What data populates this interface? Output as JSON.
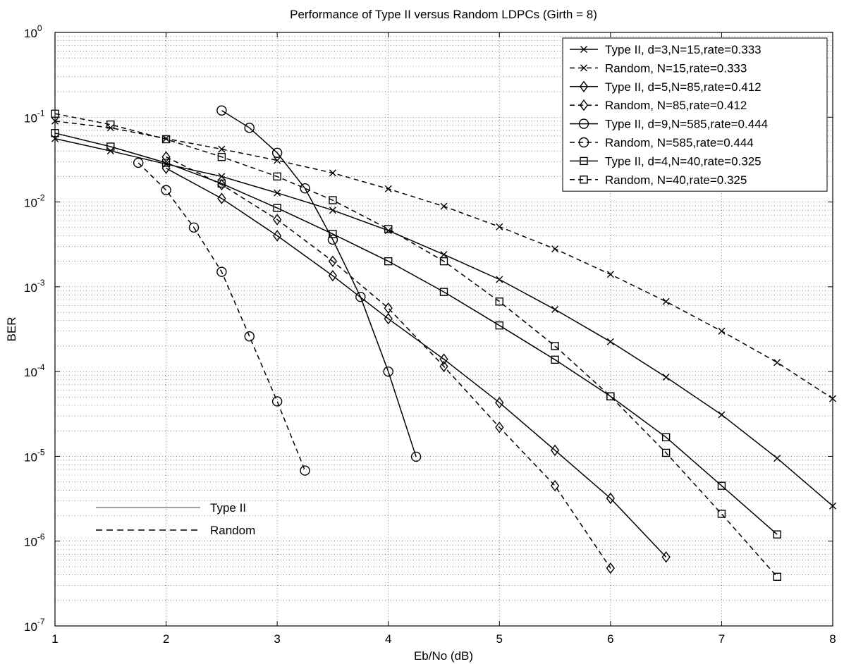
{
  "chart_data": {
    "type": "line",
    "title": "Performance of Type II versus Random LDPCs (Girth = 8)",
    "xlabel": "Eb/No (dB)",
    "ylabel": "BER",
    "xlim": [
      1,
      8
    ],
    "ylim": [
      1e-07,
      1
    ],
    "yscale": "log",
    "grid": true,
    "xticks": [
      "1",
      "2",
      "3",
      "4",
      "5",
      "6",
      "7",
      "8"
    ],
    "yticks": [
      {
        "base": "10",
        "exp": "0"
      },
      {
        "base": "10",
        "exp": "-1"
      },
      {
        "base": "10",
        "exp": "-2"
      },
      {
        "base": "10",
        "exp": "-3"
      },
      {
        "base": "10",
        "exp": "-4"
      },
      {
        "base": "10",
        "exp": "-5"
      },
      {
        "base": "10",
        "exp": "-6"
      },
      {
        "base": "10",
        "exp": "-7"
      }
    ],
    "legend_position": "top-right",
    "series": [
      {
        "name": "Type II, d=3,N=15,rate=0.333",
        "style": "solid",
        "marker": "x",
        "x": [
          1,
          1.5,
          2,
          2.5,
          3,
          3.5,
          4,
          4.5,
          5,
          5.5,
          6,
          6.5,
          7,
          7.5,
          8
        ],
        "y": [
          0.056,
          0.04,
          0.028,
          0.02,
          0.0128,
          0.008,
          0.0046,
          0.0024,
          0.00122,
          0.00054,
          0.000225,
          8.6e-05,
          3.1e-05,
          9.5e-06,
          2.6e-06
        ]
      },
      {
        "name": "Random, N=15,rate=0.333",
        "style": "dashed",
        "marker": "x",
        "x": [
          1,
          1.5,
          2,
          2.5,
          3,
          3.5,
          4,
          4.5,
          5,
          5.5,
          6,
          6.5,
          7,
          7.5,
          8
        ],
        "y": [
          0.09,
          0.075,
          0.056,
          0.042,
          0.031,
          0.022,
          0.0143,
          0.0089,
          0.0051,
          0.0028,
          0.0014,
          0.00067,
          0.0003,
          0.000128,
          4.8e-05
        ]
      },
      {
        "name": "Type II, d=5,N=85,rate=0.412",
        "style": "solid",
        "marker": "diamond",
        "x": [
          2,
          2.5,
          3,
          3.5,
          4,
          4.5,
          5,
          5.5,
          6,
          6.5
        ],
        "y": [
          0.025,
          0.011,
          0.004,
          0.00135,
          0.00042,
          0.00014,
          4.3e-05,
          1.18e-05,
          3.2e-06,
          6.5e-07
        ]
      },
      {
        "name": "Random, N=85,rate=0.412",
        "style": "dashed",
        "marker": "diamond",
        "x": [
          2,
          2.5,
          3,
          3.5,
          4,
          4.5,
          5,
          5.5,
          6
        ],
        "y": [
          0.034,
          0.016,
          0.0062,
          0.002,
          0.00056,
          0.000115,
          2.2e-05,
          4.5e-06,
          4.8e-07
        ]
      },
      {
        "name": "Type II, d=9,N=585,rate=0.444",
        "style": "solid",
        "marker": "circle",
        "x": [
          2.5,
          2.75,
          3,
          3.25,
          3.5,
          3.75,
          4,
          4.25
        ],
        "y": [
          0.12,
          0.075,
          0.038,
          0.0145,
          0.0036,
          0.00076,
          0.0001,
          9.9e-06
        ]
      },
      {
        "name": "Random, N=585,rate=0.444",
        "style": "dashed",
        "marker": "circle",
        "x": [
          1.75,
          2,
          2.25,
          2.5,
          2.75,
          3,
          3.25
        ],
        "y": [
          0.029,
          0.0138,
          0.005,
          0.0015,
          0.00026,
          4.45e-05,
          6.8e-06
        ]
      },
      {
        "name": "Type II, d=4,N=40,rate=0.325",
        "style": "solid",
        "marker": "square",
        "x": [
          1,
          1.5,
          2,
          2.5,
          3,
          3.5,
          4,
          4.5,
          5,
          5.5,
          6,
          6.5,
          7,
          7.5
        ],
        "y": [
          0.065,
          0.045,
          0.029,
          0.0165,
          0.0085,
          0.0042,
          0.002,
          0.00087,
          0.00035,
          0.000138,
          5.1e-05,
          1.68e-05,
          4.5e-06,
          1.2e-06
        ]
      },
      {
        "name": "Random, N=40,rate=0.325",
        "style": "dashed",
        "marker": "square",
        "x": [
          1,
          1.5,
          2,
          2.5,
          3,
          3.5,
          4,
          4.5,
          5,
          5.5,
          6,
          6.5,
          7,
          7.5
        ],
        "y": [
          0.11,
          0.082,
          0.055,
          0.034,
          0.02,
          0.0105,
          0.0048,
          0.002,
          0.00067,
          0.0002,
          5.1e-05,
          1.1e-05,
          2.1e-06,
          3.8e-07
        ]
      }
    ],
    "annotations": [
      {
        "label": "Type II",
        "style": "solid"
      },
      {
        "label": "Random",
        "style": "dashed"
      }
    ]
  }
}
